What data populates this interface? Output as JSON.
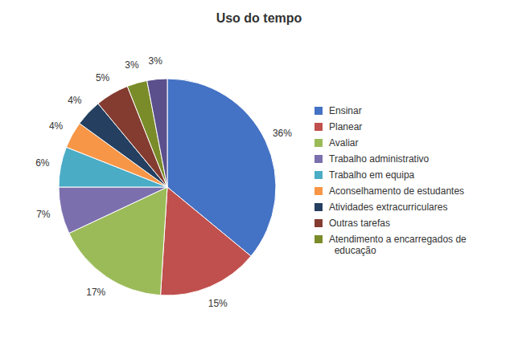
{
  "chart_data": {
    "type": "pie",
    "title": "Uso do tempo",
    "categories": [
      "Ensinar",
      "Planear",
      "Avaliar",
      "Trabalho administrativo",
      "Trabalho em equipa",
      "Aconselhamento de estudantes",
      "Atividades extracurriculares",
      "Outras tarefas",
      "Atendimento a encarregados de\n  educação",
      null
    ],
    "values": [
      36,
      15,
      17,
      7,
      6,
      4,
      4,
      5,
      3,
      3
    ],
    "value_labels": [
      "36%",
      "15%",
      "17%",
      "7%",
      "6%",
      "4%",
      "4%",
      "5%",
      "3%",
      "3%"
    ],
    "colors": [
      "#4472C4",
      "#C0504D",
      "#9BBB59",
      "#7B6FAE",
      "#4BACC6",
      "#F79646",
      "#243F60",
      "#843C30",
      "#7A8C2A",
      "#5B4F8C"
    ],
    "data_labels": true,
    "legend": "right"
  }
}
